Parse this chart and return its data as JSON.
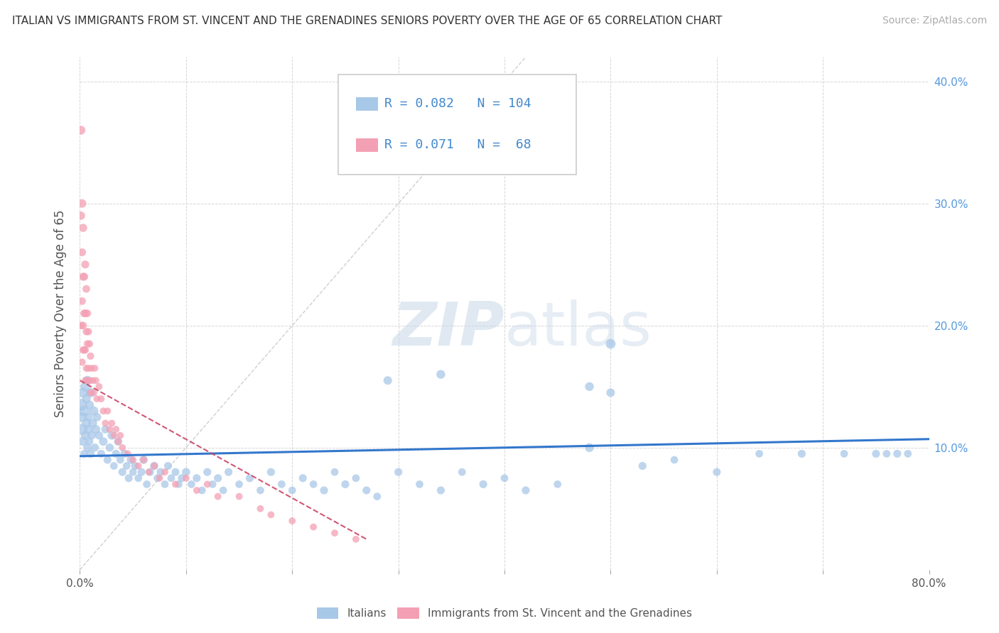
{
  "title": "ITALIAN VS IMMIGRANTS FROM ST. VINCENT AND THE GRENADINES SENIORS POVERTY OVER THE AGE OF 65 CORRELATION CHART",
  "source": "Source: ZipAtlas.com",
  "ylabel": "Seniors Poverty Over the Age of 65",
  "xlim": [
    0.0,
    0.8
  ],
  "ylim": [
    0.0,
    0.42
  ],
  "xticks": [
    0.0,
    0.1,
    0.2,
    0.3,
    0.4,
    0.5,
    0.6,
    0.7,
    0.8
  ],
  "xticklabels": [
    "0.0%",
    "",
    "",
    "",
    "",
    "",
    "",
    "",
    "80.0%"
  ],
  "yticks": [
    0.0,
    0.1,
    0.2,
    0.3,
    0.4
  ],
  "yticklabels": [
    "",
    "10.0%",
    "20.0%",
    "30.0%",
    "40.0%"
  ],
  "italian_R": 0.082,
  "italian_N": 104,
  "svg_R": 0.071,
  "svg_N": 68,
  "italian_color": "#a8c8e8",
  "svg_color": "#f4a0b4",
  "trend_italian_color": "#3377cc",
  "trend_svg_color": "#cc4466",
  "legend_italic_label": "Italians",
  "legend_svg_label": "Immigrants from St. Vincent and the Grenadines",
  "italian_x": [
    0.001,
    0.002,
    0.002,
    0.003,
    0.003,
    0.004,
    0.004,
    0.005,
    0.005,
    0.006,
    0.006,
    0.007,
    0.007,
    0.008,
    0.008,
    0.009,
    0.009,
    0.01,
    0.01,
    0.011,
    0.012,
    0.013,
    0.014,
    0.015,
    0.016,
    0.018,
    0.02,
    0.022,
    0.024,
    0.026,
    0.028,
    0.03,
    0.032,
    0.034,
    0.036,
    0.038,
    0.04,
    0.042,
    0.044,
    0.046,
    0.048,
    0.05,
    0.052,
    0.055,
    0.058,
    0.06,
    0.063,
    0.066,
    0.07,
    0.073,
    0.076,
    0.08,
    0.083,
    0.086,
    0.09,
    0.093,
    0.096,
    0.1,
    0.105,
    0.11,
    0.115,
    0.12,
    0.125,
    0.13,
    0.135,
    0.14,
    0.15,
    0.16,
    0.17,
    0.18,
    0.19,
    0.2,
    0.21,
    0.22,
    0.23,
    0.24,
    0.25,
    0.26,
    0.27,
    0.28,
    0.3,
    0.32,
    0.34,
    0.36,
    0.38,
    0.4,
    0.42,
    0.45,
    0.48,
    0.5,
    0.53,
    0.56,
    0.6,
    0.64,
    0.68,
    0.72,
    0.75,
    0.76,
    0.77,
    0.78,
    0.34,
    0.29,
    0.48,
    0.5
  ],
  "italian_y": [
    0.135,
    0.115,
    0.125,
    0.105,
    0.145,
    0.095,
    0.13,
    0.11,
    0.15,
    0.12,
    0.14,
    0.1,
    0.155,
    0.115,
    0.125,
    0.105,
    0.135,
    0.095,
    0.145,
    0.11,
    0.12,
    0.13,
    0.1,
    0.115,
    0.125,
    0.11,
    0.095,
    0.105,
    0.115,
    0.09,
    0.1,
    0.11,
    0.085,
    0.095,
    0.105,
    0.09,
    0.08,
    0.095,
    0.085,
    0.075,
    0.09,
    0.08,
    0.085,
    0.075,
    0.08,
    0.09,
    0.07,
    0.08,
    0.085,
    0.075,
    0.08,
    0.07,
    0.085,
    0.075,
    0.08,
    0.07,
    0.075,
    0.08,
    0.07,
    0.075,
    0.065,
    0.08,
    0.07,
    0.075,
    0.065,
    0.08,
    0.07,
    0.075,
    0.065,
    0.08,
    0.07,
    0.065,
    0.075,
    0.07,
    0.065,
    0.08,
    0.07,
    0.075,
    0.065,
    0.06,
    0.08,
    0.07,
    0.065,
    0.08,
    0.07,
    0.075,
    0.065,
    0.07,
    0.1,
    0.185,
    0.085,
    0.09,
    0.08,
    0.095,
    0.095,
    0.095,
    0.095,
    0.095,
    0.095,
    0.095,
    0.16,
    0.155,
    0.15,
    0.145
  ],
  "italian_size": [
    150,
    120,
    100,
    80,
    100,
    60,
    120,
    80,
    100,
    90,
    80,
    70,
    90,
    80,
    70,
    60,
    80,
    70,
    90,
    75,
    80,
    90,
    70,
    80,
    75,
    70,
    65,
    75,
    70,
    65,
    70,
    75,
    60,
    65,
    70,
    60,
    65,
    70,
    60,
    65,
    70,
    60,
    65,
    60,
    65,
    70,
    60,
    65,
    70,
    60,
    65,
    60,
    65,
    60,
    65,
    60,
    65,
    70,
    60,
    65,
    60,
    65,
    60,
    65,
    60,
    65,
    60,
    65,
    60,
    65,
    60,
    60,
    65,
    60,
    65,
    60,
    65,
    60,
    65,
    60,
    65,
    60,
    65,
    60,
    65,
    60,
    65,
    60,
    80,
    100,
    65,
    60,
    65,
    60,
    65,
    60,
    65,
    60,
    65,
    60,
    80,
    75,
    80,
    75
  ],
  "svg_x": [
    0.001,
    0.001,
    0.001,
    0.002,
    0.002,
    0.002,
    0.002,
    0.003,
    0.003,
    0.003,
    0.003,
    0.004,
    0.004,
    0.004,
    0.005,
    0.005,
    0.005,
    0.005,
    0.006,
    0.006,
    0.006,
    0.007,
    0.007,
    0.007,
    0.008,
    0.008,
    0.009,
    0.009,
    0.01,
    0.01,
    0.011,
    0.012,
    0.013,
    0.014,
    0.015,
    0.016,
    0.018,
    0.02,
    0.022,
    0.024,
    0.026,
    0.028,
    0.03,
    0.032,
    0.034,
    0.036,
    0.038,
    0.04,
    0.045,
    0.05,
    0.055,
    0.06,
    0.065,
    0.07,
    0.075,
    0.08,
    0.09,
    0.1,
    0.11,
    0.12,
    0.13,
    0.15,
    0.17,
    0.18,
    0.2,
    0.22,
    0.24,
    0.26
  ],
  "svg_y": [
    0.36,
    0.29,
    0.2,
    0.3,
    0.26,
    0.22,
    0.17,
    0.28,
    0.24,
    0.2,
    0.18,
    0.24,
    0.21,
    0.18,
    0.25,
    0.21,
    0.18,
    0.155,
    0.23,
    0.195,
    0.165,
    0.21,
    0.185,
    0.155,
    0.195,
    0.165,
    0.185,
    0.155,
    0.175,
    0.145,
    0.165,
    0.155,
    0.145,
    0.165,
    0.155,
    0.14,
    0.15,
    0.14,
    0.13,
    0.12,
    0.13,
    0.115,
    0.12,
    0.11,
    0.115,
    0.105,
    0.11,
    0.1,
    0.095,
    0.09,
    0.085,
    0.09,
    0.08,
    0.085,
    0.075,
    0.08,
    0.07,
    0.075,
    0.065,
    0.07,
    0.06,
    0.06,
    0.05,
    0.045,
    0.04,
    0.035,
    0.03,
    0.025
  ],
  "svg_size": [
    80,
    70,
    60,
    75,
    65,
    60,
    55,
    70,
    65,
    60,
    55,
    65,
    60,
    55,
    65,
    60,
    55,
    50,
    60,
    55,
    50,
    60,
    55,
    50,
    55,
    50,
    55,
    50,
    55,
    50,
    50,
    50,
    50,
    50,
    50,
    50,
    50,
    50,
    50,
    50,
    50,
    50,
    50,
    50,
    50,
    50,
    50,
    50,
    50,
    50,
    50,
    50,
    50,
    50,
    50,
    50,
    50,
    50,
    50,
    50,
    50,
    50,
    50,
    50,
    50,
    50,
    50,
    50
  ]
}
